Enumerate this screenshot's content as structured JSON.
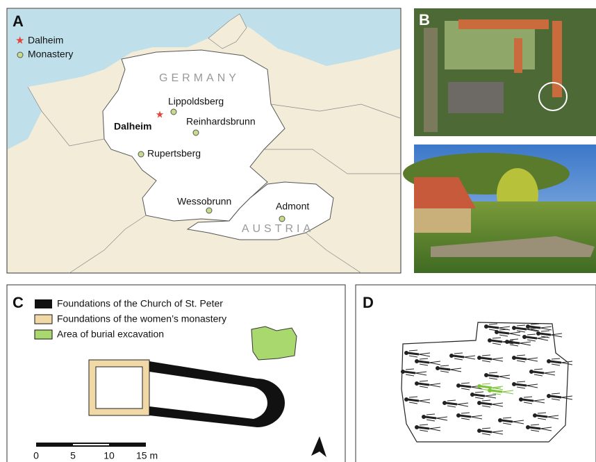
{
  "panel_a": {
    "label": "A",
    "legend": [
      "Dalheim",
      "Monastery"
    ],
    "countries": [
      "GERMANY",
      "AUSTRIA"
    ],
    "sites": [
      "Dalheim",
      "Lippoldsberg",
      "Reinhardsbrunn",
      "Rupertsberg",
      "Wessobrunn",
      "Admont"
    ]
  },
  "panel_b": {
    "label": "B"
  },
  "panel_c": {
    "label": "C",
    "legend": [
      "Foundations of the Church of St. Peter",
      "Foundations of the women’s monastery",
      "Area of burial excavation"
    ],
    "scale_bar": [
      "0",
      "5",
      "10",
      "15 m"
    ]
  },
  "panel_d": {
    "label": "D"
  }
}
